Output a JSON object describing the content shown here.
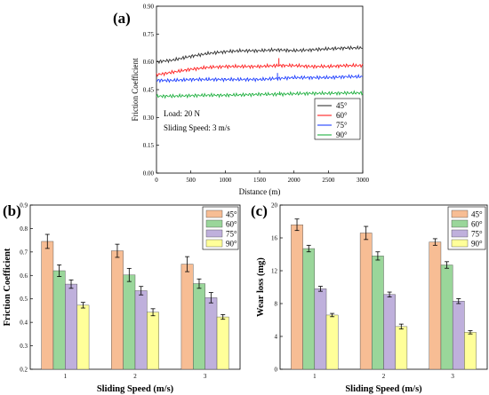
{
  "chart_data": [
    {
      "panel_label": "(a)",
      "type": "line",
      "xlabel": "Distance (m)",
      "ylabel": "Friction Coefficient",
      "xlim": [
        0,
        3000
      ],
      "ylim": [
        0,
        0.9
      ],
      "xticks": [
        "0",
        "500",
        "1000",
        "1500",
        "2000",
        "2500",
        "3000"
      ],
      "yticks": [
        "0.00",
        "0.15",
        "0.30",
        "0.45",
        "0.60",
        "0.75",
        "0.90"
      ],
      "annotations": [
        "Load: 20 N",
        "Sliding Speed:  3 m/s"
      ],
      "legend_position": "bottom-right",
      "series": [
        {
          "name": "45°",
          "color": "#333333",
          "x": [
            0,
            250,
            500,
            750,
            1000,
            1250,
            1500,
            1750,
            2000,
            2250,
            2500,
            2750,
            3000
          ],
          "y": [
            0.6,
            0.61,
            0.63,
            0.645,
            0.655,
            0.66,
            0.66,
            0.665,
            0.66,
            0.665,
            0.67,
            0.675,
            0.675
          ]
        },
        {
          "name": "60°",
          "color": "#ff2020",
          "x": [
            0,
            250,
            500,
            750,
            1000,
            1250,
            1500,
            1750,
            2000,
            2250,
            2500,
            2750,
            3000
          ],
          "y": [
            0.53,
            0.545,
            0.56,
            0.57,
            0.575,
            0.575,
            0.575,
            0.58,
            0.58,
            0.575,
            0.575,
            0.58,
            0.58
          ]
        },
        {
          "name": "75°",
          "color": "#2040ff",
          "x": [
            0,
            250,
            500,
            750,
            1000,
            1250,
            1500,
            1750,
            2000,
            2250,
            2500,
            2750,
            3000
          ],
          "y": [
            0.5,
            0.5,
            0.505,
            0.505,
            0.505,
            0.505,
            0.505,
            0.51,
            0.515,
            0.515,
            0.515,
            0.52,
            0.52
          ]
        },
        {
          "name": "90°",
          "color": "#20b040",
          "x": [
            0,
            250,
            500,
            750,
            1000,
            1250,
            1500,
            1750,
            2000,
            2250,
            2500,
            2750,
            3000
          ],
          "y": [
            0.415,
            0.415,
            0.418,
            0.42,
            0.42,
            0.422,
            0.425,
            0.425,
            0.428,
            0.43,
            0.43,
            0.432,
            0.432
          ]
        }
      ],
      "spikes": [
        {
          "series": 1,
          "x": 1780,
          "y": 0.62
        },
        {
          "series": 2,
          "x": 1760,
          "y": 0.54
        },
        {
          "series": 3,
          "x": 1790,
          "y": 0.44
        }
      ]
    },
    {
      "panel_label": "(b)",
      "type": "bar",
      "xlabel": "Sliding Speed (m/s)",
      "ylabel": "Friction Coefficient",
      "categories": [
        "1",
        "2",
        "3"
      ],
      "ylim": [
        0.2,
        0.9
      ],
      "yticks": [
        "0.2",
        "0.3",
        "0.4",
        "0.5",
        "0.6",
        "0.7",
        "0.8",
        "0.9"
      ],
      "legend_position": "top-right",
      "series": [
        {
          "name": "45°",
          "color": "#f7bd94",
          "values": [
            0.745,
            0.705,
            0.648
          ],
          "errors": [
            0.03,
            0.028,
            0.032
          ]
        },
        {
          "name": "60°",
          "color": "#9ad69a",
          "values": [
            0.62,
            0.602,
            0.565
          ],
          "errors": [
            0.025,
            0.028,
            0.02
          ]
        },
        {
          "name": "75°",
          "color": "#bfb0dc",
          "values": [
            0.563,
            0.535,
            0.505
          ],
          "errors": [
            0.018,
            0.018,
            0.022
          ]
        },
        {
          "name": "90°",
          "color": "#ffff99",
          "values": [
            0.473,
            0.443,
            0.423
          ],
          "errors": [
            0.012,
            0.015,
            0.01
          ]
        }
      ]
    },
    {
      "panel_label": "(c)",
      "type": "bar",
      "xlabel": "Sliding Speed (m/s)",
      "ylabel": "Wear loss (mg)",
      "categories": [
        "1",
        "2",
        "3"
      ],
      "ylim": [
        0,
        20
      ],
      "yticks": [
        "0",
        "4",
        "8",
        "12",
        "16",
        "20"
      ],
      "legend_position": "top-right",
      "series": [
        {
          "name": "45°",
          "color": "#f7bd94",
          "values": [
            17.6,
            16.6,
            15.5
          ],
          "errors": [
            0.7,
            0.8,
            0.4
          ]
        },
        {
          "name": "60°",
          "color": "#9ad69a",
          "values": [
            14.7,
            13.8,
            12.7
          ],
          "errors": [
            0.4,
            0.5,
            0.4
          ]
        },
        {
          "name": "75°",
          "color": "#bfb0dc",
          "values": [
            9.8,
            9.1,
            8.3
          ],
          "errors": [
            0.3,
            0.3,
            0.3
          ]
        },
        {
          "name": "90°",
          "color": "#ffff99",
          "values": [
            6.6,
            5.2,
            4.5
          ],
          "errors": [
            0.2,
            0.3,
            0.2
          ]
        }
      ]
    }
  ]
}
